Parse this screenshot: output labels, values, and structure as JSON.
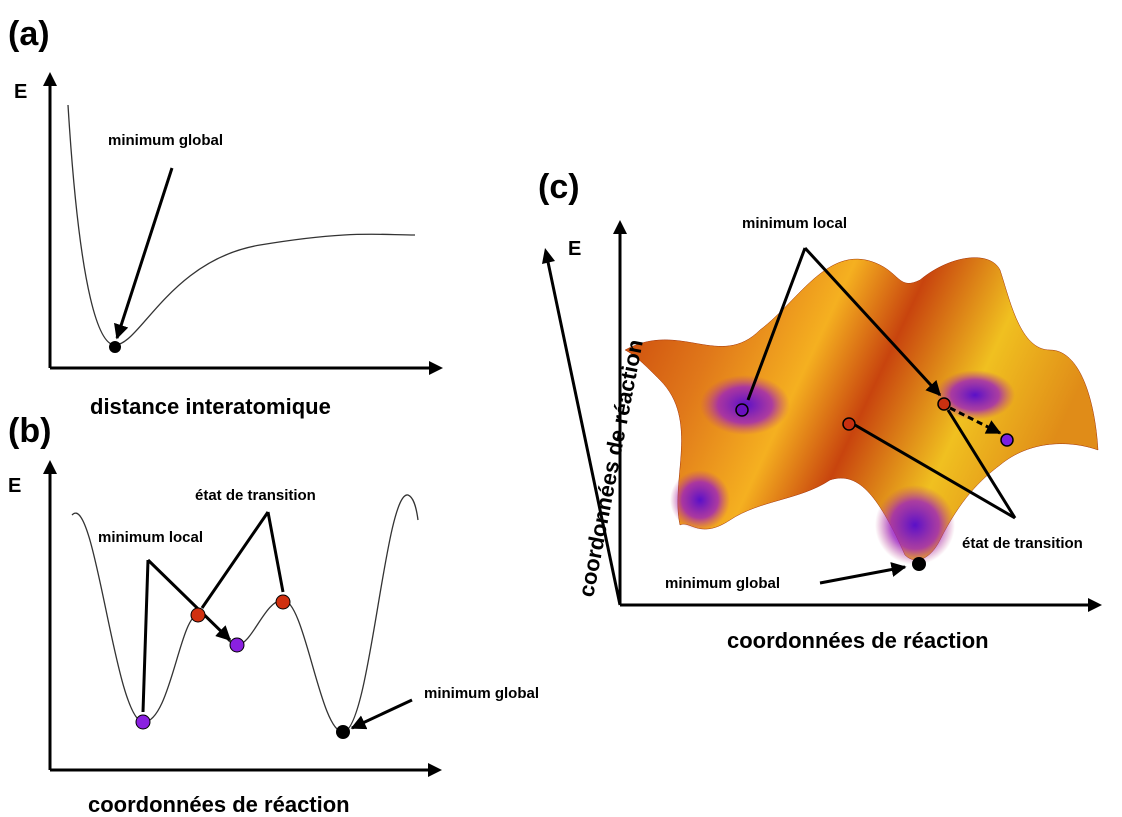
{
  "panels": {
    "a": {
      "label": "(a)",
      "axis_y": "E",
      "axis_x": "distance interatomique",
      "annotations": {
        "global": "minimum global"
      }
    },
    "b": {
      "label": "(b)",
      "axis_y": "E",
      "axis_x": "coordonnées de réaction",
      "annotations": {
        "transition": "état de transition",
        "local": "minimum local",
        "global": "minimum global"
      }
    },
    "c": {
      "label": "(c)",
      "axis_y": "E",
      "axis_x": "coordonnées de réaction",
      "axis_depth": "coordonnées de réaction",
      "annotations": {
        "local": "minimum local",
        "transition": "état de transition",
        "global": "minimum global"
      }
    }
  }
}
